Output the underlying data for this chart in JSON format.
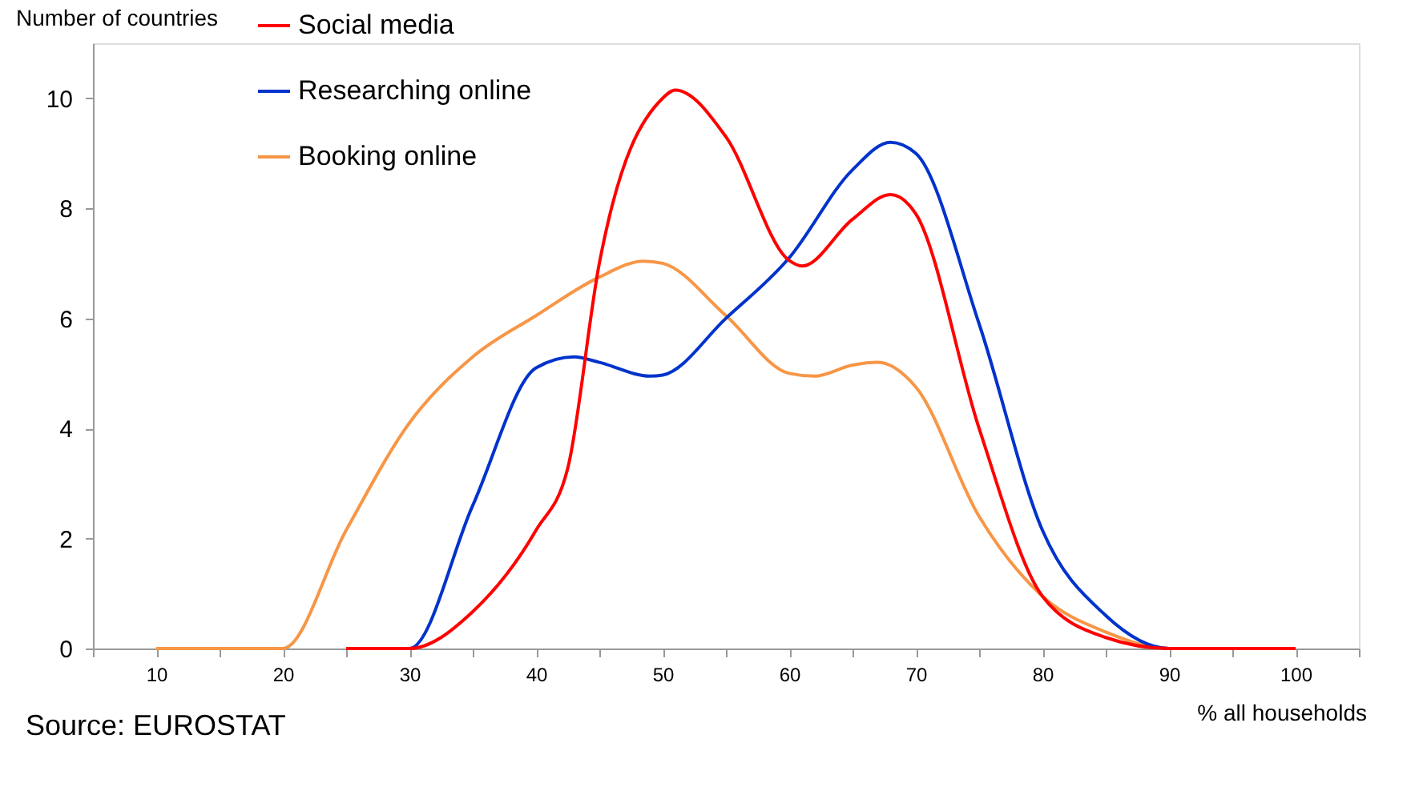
{
  "chart_data": {
    "type": "line",
    "xlabel": "% all households",
    "ylabel": "Number of countries",
    "annotations": [
      "Source: EUROSTAT"
    ],
    "xlim": [
      5,
      105
    ],
    "xticks": [
      {
        "value": 5,
        "label": null
      },
      10,
      {
        "value": 15,
        "label": null
      },
      20,
      {
        "value": 25,
        "label": null
      },
      30,
      {
        "value": 35,
        "label": null
      },
      40,
      {
        "value": 45,
        "label": null
      },
      50,
      {
        "value": 55,
        "label": null
      },
      60,
      {
        "value": 65,
        "label": null
      },
      70,
      {
        "value": 75,
        "label": null
      },
      80,
      {
        "value": 85,
        "label": null
      },
      90,
      {
        "value": 95,
        "label": null
      },
      100,
      {
        "value": 105,
        "label": null
      }
    ],
    "ylim": [
      0,
      11
    ],
    "yticks": [
      0,
      2,
      4,
      6,
      8,
      10
    ],
    "grid": false,
    "legend": "top left",
    "marker": "none",
    "line_style": "solid",
    "series": [
      {
        "name": "Social media",
        "color": "#ff0000",
        "x": [
          25,
          30,
          35,
          40,
          42.5,
          45,
          50,
          51,
          55,
          60,
          61,
          65,
          68,
          70,
          75,
          80,
          85,
          90,
          95,
          100
        ],
        "values": [
          0,
          0,
          0.67,
          2.15,
          3.27,
          7.0,
          10.0,
          10.15,
          9.3,
          7.05,
          6.95,
          7.8,
          8.25,
          7.9,
          4.0,
          0.95,
          0.2,
          0,
          0,
          0
        ]
      },
      {
        "name": "Researching online",
        "color": "#0033cc",
        "x": [
          25,
          30,
          35,
          40,
          43,
          45,
          49,
          50,
          55,
          60,
          65,
          68,
          70,
          75,
          80,
          85,
          90,
          95,
          100
        ],
        "values": [
          0,
          0,
          2.6,
          5.1,
          5.3,
          5.2,
          4.95,
          4.97,
          6.0,
          7.1,
          8.7,
          9.2,
          9.0,
          5.9,
          2.15,
          0.6,
          0,
          0,
          0
        ]
      },
      {
        "name": "Booking online",
        "color": "#f79646",
        "x": [
          10,
          15,
          20,
          25,
          30,
          35,
          40,
          45,
          48.5,
          50,
          55,
          60,
          62,
          65,
          67,
          70,
          75,
          80,
          85,
          90,
          95,
          100
        ],
        "values": [
          0,
          0,
          0,
          2.15,
          4.1,
          5.3,
          6.05,
          6.75,
          7.04,
          7.0,
          6.05,
          5.0,
          4.95,
          5.15,
          5.2,
          4.75,
          2.4,
          0.95,
          0.3,
          0,
          0,
          0
        ]
      }
    ]
  }
}
